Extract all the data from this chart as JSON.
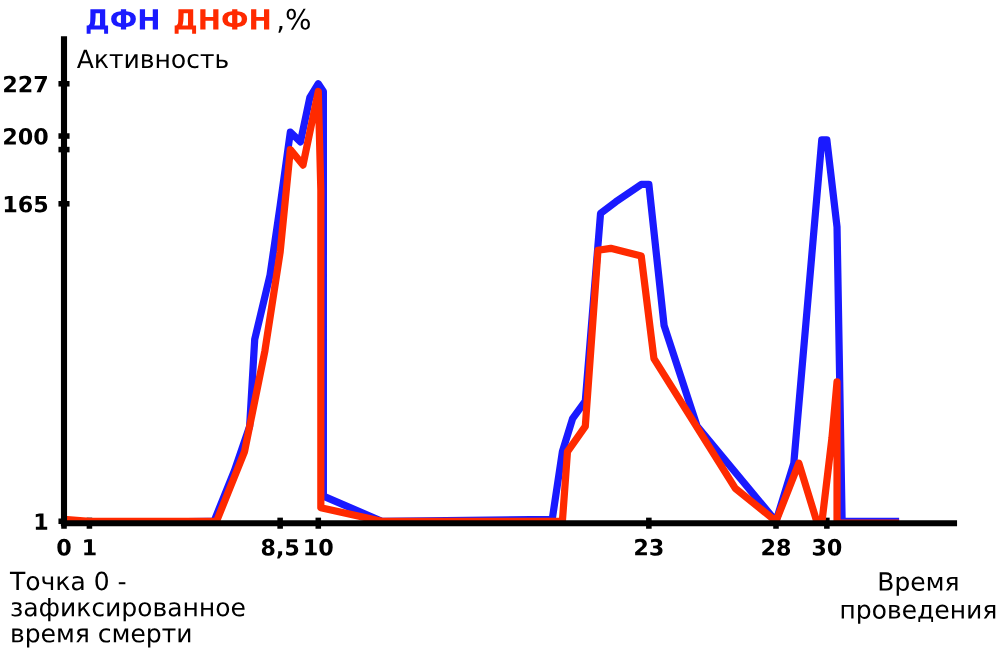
{
  "chart_data": {
    "type": "line",
    "ylabel": "Активность",
    "xlabel": "Время проведения",
    "annotations": [
      ",%",
      "Точка 0 -\nзафиксированное\nвремя смерти"
    ],
    "xlim": [
      0,
      35
    ],
    "ylim": [
      0,
      250
    ],
    "xticks": [
      0,
      1,
      {
        "value": 8.5,
        "label": "8,5"
      },
      10,
      23,
      28,
      30
    ],
    "yticks": [
      1,
      165,
      {
        "value": 193,
        "label": null
      },
      200,
      227
    ],
    "legend": "top left",
    "grid": false,
    "marker": "none",
    "line_style": "solid",
    "series": [
      {
        "name": "ДФН",
        "color": "#1a1aff",
        "x": [
          0,
          5.65,
          5.9,
          6.7,
          7.3,
          7.5,
          8.1,
          8.5,
          8.9,
          9.3,
          9.67,
          10,
          10.2,
          10.2,
          12.5,
          19.2,
          19.6,
          20.0,
          20.5,
          21.1,
          21.7,
          22.7,
          23,
          23.6,
          24.9,
          28,
          28.7,
          29.8,
          30,
          30.4,
          30.6,
          32.7
        ],
        "values": [
          0,
          1,
          1,
          27,
          50,
          95,
          128,
          164,
          202,
          197,
          220,
          227,
          223,
          14,
          1,
          2,
          37,
          54,
          63,
          160,
          166,
          175,
          175,
          102,
          50,
          1,
          31,
          198,
          198,
          153,
          1,
          1
        ]
      },
      {
        "name": "ДНФН",
        "color": "#ff2a00",
        "x": [
          0,
          1,
          5.65,
          6.0,
          7.1,
          7.9,
          8.5,
          8.9,
          9.4,
          9.7,
          10,
          10.1,
          10.1,
          12.5,
          19.6,
          19.8,
          20.5,
          21,
          21.5,
          22.7,
          23.2,
          26.4,
          28,
          28.9,
          29.6,
          29.8,
          30.2,
          30.4,
          30.4,
          32.7
        ],
        "values": [
          2,
          1,
          1,
          1,
          37,
          89,
          140,
          193,
          185,
          204,
          223,
          172,
          8,
          1,
          1,
          37,
          50,
          141,
          142,
          138,
          85,
          18,
          1,
          31,
          1,
          0,
          44,
          73,
          0,
          0
        ]
      }
    ]
  }
}
